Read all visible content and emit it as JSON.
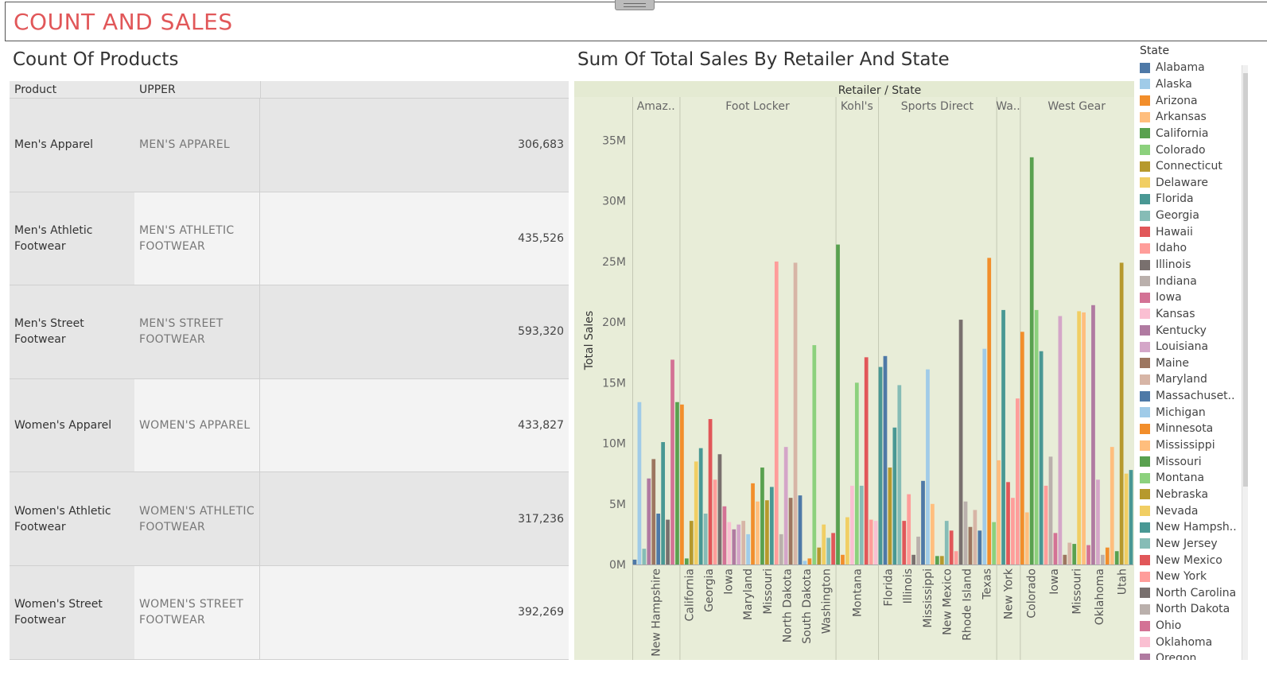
{
  "dashboard": {
    "title": "COUNT AND SALES"
  },
  "count_sheet": {
    "title": "Count Of Products",
    "columns": [
      "Product",
      "UPPER"
    ],
    "rows": [
      {
        "product": "Men's Apparel",
        "upper": "MEN'S APPAREL",
        "value": "306,683"
      },
      {
        "product": "Men's Athletic Footwear",
        "upper": "MEN'S ATHLETIC FOOTWEAR",
        "value": "435,526"
      },
      {
        "product": "Men's Street Footwear",
        "upper": "MEN'S STREET FOOTWEAR",
        "value": "593,320"
      },
      {
        "product": "Women's Apparel",
        "upper": "WOMEN'S APPAREL",
        "value": "433,827"
      },
      {
        "product": "Women's Athletic Footwear",
        "upper": "WOMEN'S ATHLETIC FOOTWEAR",
        "value": "317,236"
      },
      {
        "product": "Women's Street Footwear",
        "upper": "WOMEN'S STREET FOOTWEAR",
        "value": "392,269"
      }
    ]
  },
  "sales_sheet": {
    "title": "Sum Of Total Sales By Retailer And State"
  },
  "legend": {
    "title": "State",
    "items": [
      {
        "name": "Alabama",
        "color": "#4e79a7"
      },
      {
        "name": "Alaska",
        "color": "#a0cbe8"
      },
      {
        "name": "Arizona",
        "color": "#f28e2b"
      },
      {
        "name": "Arkansas",
        "color": "#ffbe7d"
      },
      {
        "name": "California",
        "color": "#59a14f"
      },
      {
        "name": "Colorado",
        "color": "#8cd17d"
      },
      {
        "name": "Connecticut",
        "color": "#b6992d"
      },
      {
        "name": "Delaware",
        "color": "#f1ce63"
      },
      {
        "name": "Florida",
        "color": "#499894"
      },
      {
        "name": "Georgia",
        "color": "#86bcb6"
      },
      {
        "name": "Hawaii",
        "color": "#e15759"
      },
      {
        "name": "Idaho",
        "color": "#ff9d9a"
      },
      {
        "name": "Illinois",
        "color": "#79706e"
      },
      {
        "name": "Indiana",
        "color": "#bab0ac"
      },
      {
        "name": "Iowa",
        "color": "#d37295"
      },
      {
        "name": "Kansas",
        "color": "#fabfd2"
      },
      {
        "name": "Kentucky",
        "color": "#b07aa1"
      },
      {
        "name": "Louisiana",
        "color": "#d4a6c8"
      },
      {
        "name": "Maine",
        "color": "#9d7660"
      },
      {
        "name": "Maryland",
        "color": "#d7b5a6"
      },
      {
        "name": "Massachuset..",
        "color": "#4e79a7"
      },
      {
        "name": "Michigan",
        "color": "#a0cbe8"
      },
      {
        "name": "Minnesota",
        "color": "#f28e2b"
      },
      {
        "name": "Mississippi",
        "color": "#ffbe7d"
      },
      {
        "name": "Missouri",
        "color": "#59a14f"
      },
      {
        "name": "Montana",
        "color": "#8cd17d"
      },
      {
        "name": "Nebraska",
        "color": "#b6992d"
      },
      {
        "name": "Nevada",
        "color": "#f1ce63"
      },
      {
        "name": "New Hampsh..",
        "color": "#499894"
      },
      {
        "name": "New Jersey",
        "color": "#86bcb6"
      },
      {
        "name": "New Mexico",
        "color": "#e15759"
      },
      {
        "name": "New York",
        "color": "#ff9d9a"
      },
      {
        "name": "North Carolina",
        "color": "#79706e"
      },
      {
        "name": "North Dakota",
        "color": "#bab0ac"
      },
      {
        "name": "Ohio",
        "color": "#d37295"
      },
      {
        "name": "Oklahoma",
        "color": "#fabfd2"
      },
      {
        "name": "Oregon",
        "color": "#b07aa1"
      }
    ]
  },
  "chart_data": {
    "type": "bar",
    "title": "Sum Of Total Sales By Retailer And State",
    "header": "Retailer / State",
    "ylabel": "Total Sales",
    "ylim": [
      0,
      37000000
    ],
    "yticks": [
      0,
      5000000,
      10000000,
      15000000,
      20000000,
      25000000,
      30000000,
      35000000
    ],
    "ytick_labels": [
      "0M",
      "5M",
      "10M",
      "15M",
      "20M",
      "25M",
      "30M",
      "35M"
    ],
    "grid": false,
    "legend_position": "right",
    "retailers": [
      {
        "name": "Amaz..",
        "values": [
          400000,
          13400000,
          1300000,
          7100000,
          8700000,
          4200000,
          10100000,
          3700000,
          16900000,
          13400000
        ],
        "colors": [
          "#4e79a7",
          "#a0cbe8",
          "#86bcb6",
          "#b07aa1",
          "#9d7660",
          "#4e79a7",
          "#499894",
          "#79706e",
          "#d37295",
          "#59a14f"
        ],
        "tick_labels": [
          "New Hampshire"
        ]
      },
      {
        "name": "Foot Locker",
        "values": [
          13200000,
          500000,
          3600000,
          8500000,
          9600000,
          4200000,
          12000000,
          7000000,
          9100000,
          4800000,
          3500000,
          2900000,
          3300000,
          3600000,
          2500000,
          6700000,
          5200000,
          8000000,
          5300000,
          6400000,
          25000000,
          2500000,
          9700000,
          5500000,
          24900000,
          5700000,
          300000,
          500000,
          18100000,
          1400000,
          3300000,
          2200000,
          2600000
        ],
        "colors": [
          "#f28e2b",
          "#59a14f",
          "#b6992d",
          "#f1ce63",
          "#499894",
          "#86bcb6",
          "#e15759",
          "#ff9d9a",
          "#79706e",
          "#d37295",
          "#fabfd2",
          "#b07aa1",
          "#d4a6c8",
          "#d7b5a6",
          "#a0cbe8",
          "#f28e2b",
          "#ffbe7d",
          "#59a14f",
          "#b6992d",
          "#499894",
          "#ff9d9a",
          "#bab0ac",
          "#d4a6c8",
          "#9d7660",
          "#d7b5a6",
          "#4e79a7",
          "#a0cbe8",
          "#f28e2b",
          "#8cd17d",
          "#b6992d",
          "#f1ce63",
          "#86bcb6",
          "#e15759"
        ],
        "tick_labels": [
          "California",
          "Georgia",
          "Iowa",
          "Maryland",
          "Missouri",
          "North Dakota",
          "South Dakota",
          "Washington"
        ]
      },
      {
        "name": "Kohl's",
        "values": [
          26400000,
          800000,
          3900000,
          6500000,
          15000000,
          6500000,
          17100000,
          3700000,
          3600000
        ],
        "colors": [
          "#59a14f",
          "#f28e2b",
          "#f1ce63",
          "#fabfd2",
          "#8cd17d",
          "#86bcb6",
          "#e15759",
          "#ff9d9a",
          "#fabfd2"
        ],
        "tick_labels": [
          "Montana"
        ]
      },
      {
        "name": "Sports Direct",
        "values": [
          16300000,
          17200000,
          8000000,
          11300000,
          14800000,
          3600000,
          5800000,
          800000,
          2300000,
          6900000,
          16100000,
          5000000,
          700000,
          700000,
          3600000,
          2800000,
          1100000,
          20200000,
          5200000,
          3100000,
          4500000,
          2800000,
          17800000,
          25300000,
          3500000
        ],
        "colors": [
          "#499894",
          "#4e79a7",
          "#b6992d",
          "#499894",
          "#86bcb6",
          "#e15759",
          "#ff9d9a",
          "#79706e",
          "#bab0ac",
          "#4e79a7",
          "#a0cbe8",
          "#ffbe7d",
          "#59a14f",
          "#b6992d",
          "#86bcb6",
          "#e15759",
          "#ff9d9a",
          "#79706e",
          "#bab0ac",
          "#9d7660",
          "#d7b5a6",
          "#4e79a7",
          "#a0cbe8",
          "#f28e2b",
          "#8cd17d"
        ],
        "tick_labels": [
          "Florida",
          "Illinois",
          "Mississippi",
          "New Mexico",
          "Rhode Island",
          "Texas"
        ]
      },
      {
        "name": "Wa..",
        "values": [
          8600000,
          21000000,
          6800000,
          5500000,
          13700000
        ],
        "colors": [
          "#ffbe7d",
          "#499894",
          "#e15759",
          "#ff9d9a",
          "#ff9d9a"
        ],
        "tick_labels": [
          "New York"
        ]
      },
      {
        "name": "West Gear",
        "values": [
          19200000,
          4300000,
          33600000,
          21000000,
          17600000,
          6500000,
          8900000,
          2600000,
          20500000,
          800000,
          1800000,
          1700000,
          20900000,
          20800000,
          1600000,
          21400000,
          7000000,
          800000,
          1400000,
          9700000,
          1100000,
          24900000,
          7500000,
          7800000
        ],
        "colors": [
          "#f28e2b",
          "#ffbe7d",
          "#59a14f",
          "#8cd17d",
          "#499894",
          "#ff9d9a",
          "#bab0ac",
          "#d37295",
          "#d4a6c8",
          "#9d7660",
          "#d7b5a6",
          "#59a14f",
          "#f1ce63",
          "#ffbe7d",
          "#d37295",
          "#b07aa1",
          "#d4a6c8",
          "#bab0ac",
          "#f28e2b",
          "#ffbe7d",
          "#59a14f",
          "#b6992d",
          "#f1ce63",
          "#499894"
        ],
        "tick_labels": [
          "Colorado",
          "Iowa",
          "Missouri",
          "Oklahoma",
          "Utah"
        ]
      }
    ]
  }
}
